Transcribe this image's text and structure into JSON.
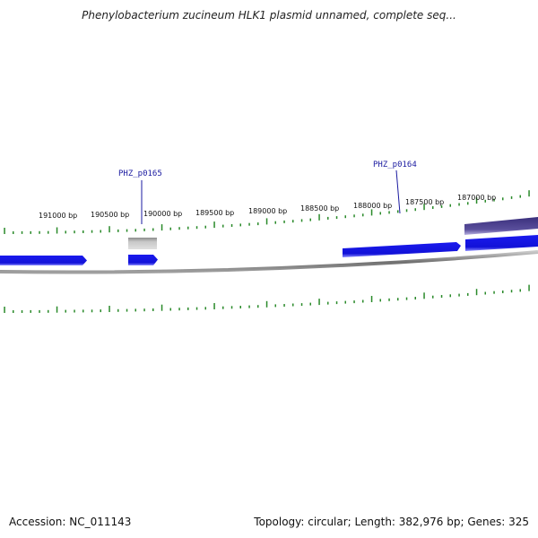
{
  "title": "Phenylobacterium zucineum HLK1 plasmid unnamed, complete seq...",
  "footer": {
    "accession": "Accession: NC_011143",
    "topology": "Topology: circular; Length: 382,976 bp; Genes: 325"
  },
  "bp_labels": [
    "191000 bp",
    "190500 bp",
    "190000 bp",
    "189500 bp",
    "189000 bp",
    "188500 bp",
    "188000 bp",
    "187500 bp",
    "187000 bp"
  ],
  "gene_labels": [
    "PHZ_p0165",
    "PHZ_p0164"
  ],
  "colors": {
    "cds": "#1a1aee",
    "cds_highlight": "#4a3f8c",
    "pseudo": "#b4b4b4",
    "backbone": "#8a8a8a",
    "ticks": "#2a8a2a",
    "gene_label": "#1a1aa0"
  }
}
